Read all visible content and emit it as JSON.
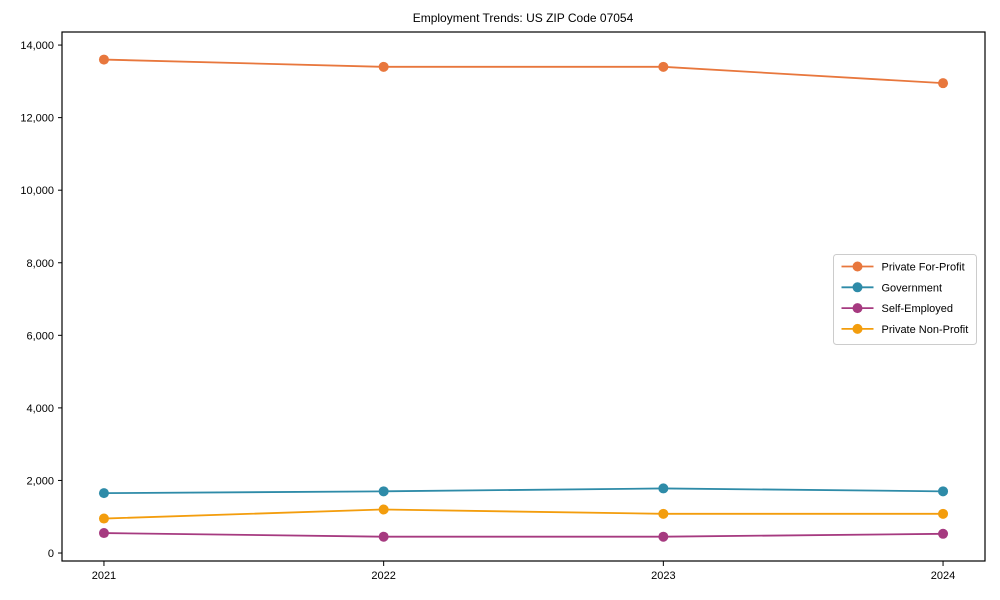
{
  "chart": {
    "title": "Employment Trends: US ZIP Code 07054"
  },
  "chart_data": {
    "type": "line",
    "title": "Employment Trends: US ZIP Code 07054",
    "xlabel": "",
    "ylabel": "",
    "x": [
      2021,
      2022,
      2023,
      2024
    ],
    "series": [
      {
        "name": "Private For-Profit",
        "color": "#e8773d",
        "values": [
          13600,
          13400,
          13400,
          12950
        ]
      },
      {
        "name": "Government",
        "color": "#2e8ba8",
        "values": [
          1650,
          1700,
          1780,
          1700
        ]
      },
      {
        "name": "Self-Employed",
        "color": "#a63a80",
        "values": [
          550,
          450,
          450,
          530
        ]
      },
      {
        "name": "Private Non-Profit",
        "color": "#f39d0d",
        "values": [
          950,
          1200,
          1080,
          1080
        ]
      }
    ],
    "yticks": [
      0,
      2000,
      4000,
      6000,
      8000,
      10000,
      12000,
      14000
    ],
    "ytick_labels": [
      "0",
      "2,000",
      "4,000",
      "6,000",
      "8,000",
      "10,000",
      "12,000",
      "14,000"
    ],
    "xtick_labels": [
      "2021",
      "2022",
      "2023",
      "2024"
    ],
    "ylim": [
      -220,
      14360
    ],
    "xlim": [
      2020.85,
      2024.15
    ],
    "grid": false,
    "marker": "circle",
    "legend_position": "right-middle",
    "axis_color": "#000000",
    "legend_border_color": "#cccccc",
    "legend_background": "#ffffff"
  }
}
